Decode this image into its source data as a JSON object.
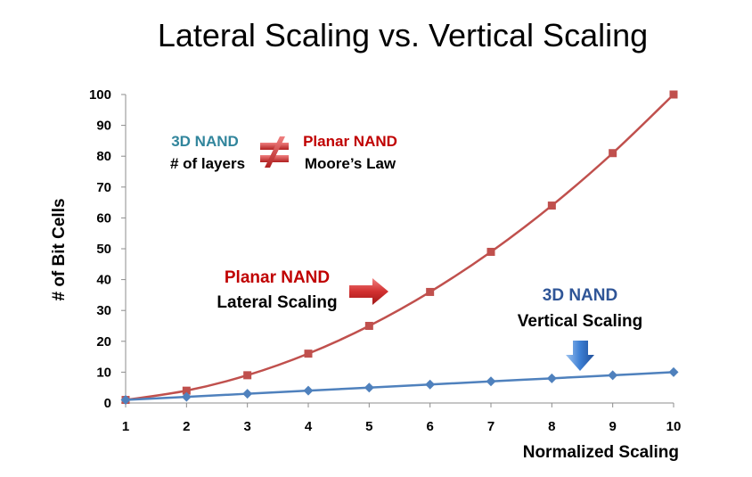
{
  "chart_data": {
    "type": "line",
    "title": "Lateral Scaling vs. Vertical Scaling",
    "xlabel": "Normalized Scaling",
    "ylabel": "# of Bit Cells",
    "x": [
      1,
      2,
      3,
      4,
      5,
      6,
      7,
      8,
      9,
      10
    ],
    "xlim": [
      1,
      10
    ],
    "ylim": [
      0,
      100
    ],
    "yticks": [
      0,
      10,
      20,
      30,
      40,
      50,
      60,
      70,
      80,
      90,
      100
    ],
    "grid": false,
    "legend": "none",
    "series": [
      {
        "values": [
          1,
          4,
          9,
          16,
          25,
          36,
          49,
          64,
          81,
          100
        ],
        "color": "#c0504d",
        "marker": "square"
      },
      {
        "values": [
          1,
          2,
          3,
          4,
          5,
          6,
          7,
          8,
          9,
          10
        ],
        "color": "#4f81bd",
        "marker": "diamond"
      }
    ]
  },
  "annotations": {
    "box": {
      "left_top": "3D NAND",
      "left_bottom": "# of layers",
      "right_top": "Planar  NAND",
      "right_bottom": "Moore’s  Law"
    },
    "planar": {
      "line1": "Planar NAND",
      "line2": "Lateral Scaling"
    },
    "vertical": {
      "line1": "3D NAND",
      "line2": "Vertical Scaling"
    }
  },
  "colors": {
    "red": "#c0504d",
    "blue": "#4f81bd",
    "teal": "#31859c",
    "dark_red": "#c00000",
    "dark_blue": "#2f5597"
  }
}
